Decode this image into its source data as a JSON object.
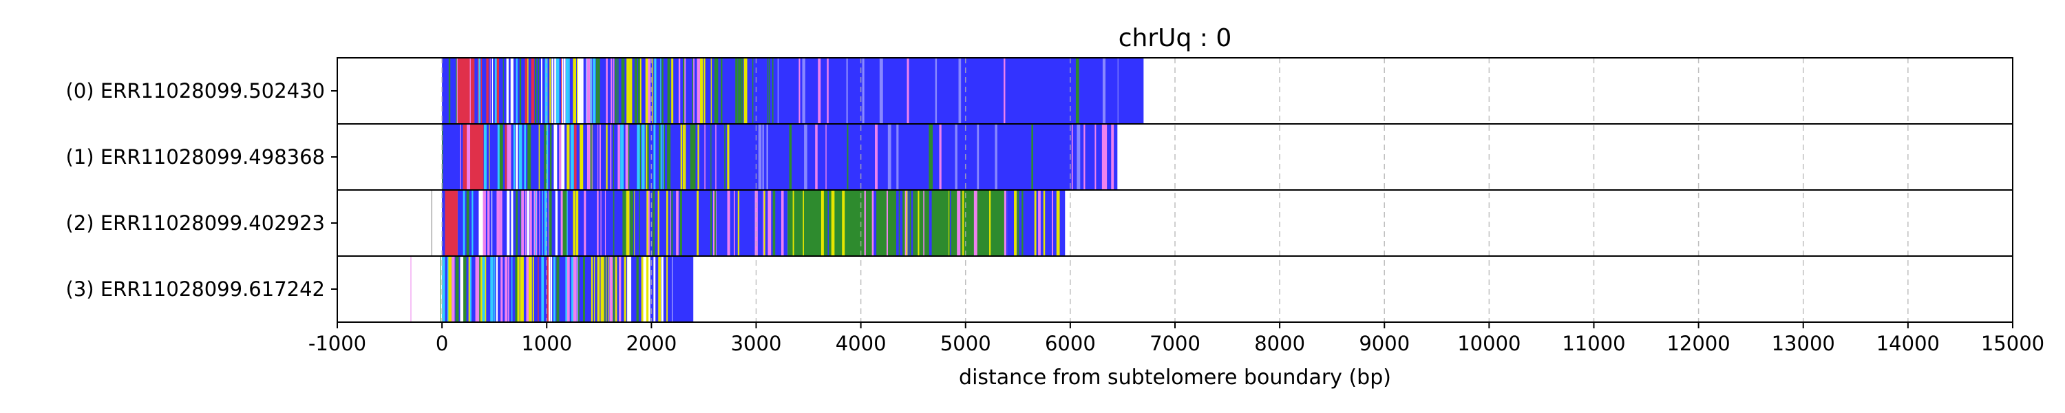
{
  "chart_data": {
    "type": "bar",
    "title": "chrUq : 0",
    "xlabel": "distance from subtelomere boundary (bp)",
    "ylabel": "",
    "xlim": [
      -1000,
      15000
    ],
    "xticks": [
      -1000,
      0,
      1000,
      2000,
      3000,
      4000,
      5000,
      6000,
      7000,
      8000,
      9000,
      10000,
      11000,
      12000,
      13000,
      14000,
      15000
    ],
    "grid": "vertical dashed",
    "colors": {
      "blue": "#3333ff",
      "green": "#2e8b2e",
      "red": "#e0304a",
      "pink": "#ee82ee",
      "yellow": "#e6e600",
      "cyan": "#33ccff",
      "grey": "#808080",
      "olive": "#6b8e23"
    },
    "reads": [
      {
        "label": "(0) ERR11028099.502430",
        "start": -200,
        "end": 6700,
        "segments": [
          {
            "from": -200,
            "to": 0,
            "color": "sparse"
          },
          {
            "from": 0,
            "to": 150,
            "color": "blue"
          },
          {
            "from": 150,
            "to": 350,
            "color": "red"
          },
          {
            "from": 350,
            "to": 1400,
            "color": "mixed"
          },
          {
            "from": 1400,
            "to": 2400,
            "color": "mixed-green"
          },
          {
            "from": 2400,
            "to": 3000,
            "color": "mixed-blue"
          },
          {
            "from": 3000,
            "to": 6700,
            "color": "blue-dominant"
          }
        ]
      },
      {
        "label": "(1) ERR11028099.498368",
        "start": -200,
        "end": 6450,
        "segments": [
          {
            "from": -200,
            "to": 0,
            "color": "sparse"
          },
          {
            "from": 0,
            "to": 200,
            "color": "blue"
          },
          {
            "from": 200,
            "to": 400,
            "color": "red"
          },
          {
            "from": 400,
            "to": 1400,
            "color": "mixed"
          },
          {
            "from": 1400,
            "to": 2300,
            "color": "mixed-green"
          },
          {
            "from": 2300,
            "to": 3000,
            "color": "mixed-blue"
          },
          {
            "from": 3000,
            "to": 6450,
            "color": "blue-dominant"
          }
        ]
      },
      {
        "label": "(2) ERR11028099.402923",
        "start": -200,
        "end": 5950,
        "segments": [
          {
            "from": -200,
            "to": 0,
            "color": "sparse"
          },
          {
            "from": 0,
            "to": 150,
            "color": "red"
          },
          {
            "from": 150,
            "to": 1200,
            "color": "mixed-pink"
          },
          {
            "from": 1200,
            "to": 3300,
            "color": "mixed-blue"
          },
          {
            "from": 3300,
            "to": 5400,
            "color": "green-dominant"
          },
          {
            "from": 5400,
            "to": 5950,
            "color": "mixed-blue"
          }
        ]
      },
      {
        "label": "(3) ERR11028099.617242",
        "start": -300,
        "end": 2400,
        "segments": [
          {
            "from": -300,
            "to": 0,
            "color": "sparse"
          },
          {
            "from": 0,
            "to": 1300,
            "color": "mixed"
          },
          {
            "from": 1300,
            "to": 2200,
            "color": "mixed-yellow"
          },
          {
            "from": 2200,
            "to": 2400,
            "color": "blue"
          }
        ]
      }
    ]
  }
}
